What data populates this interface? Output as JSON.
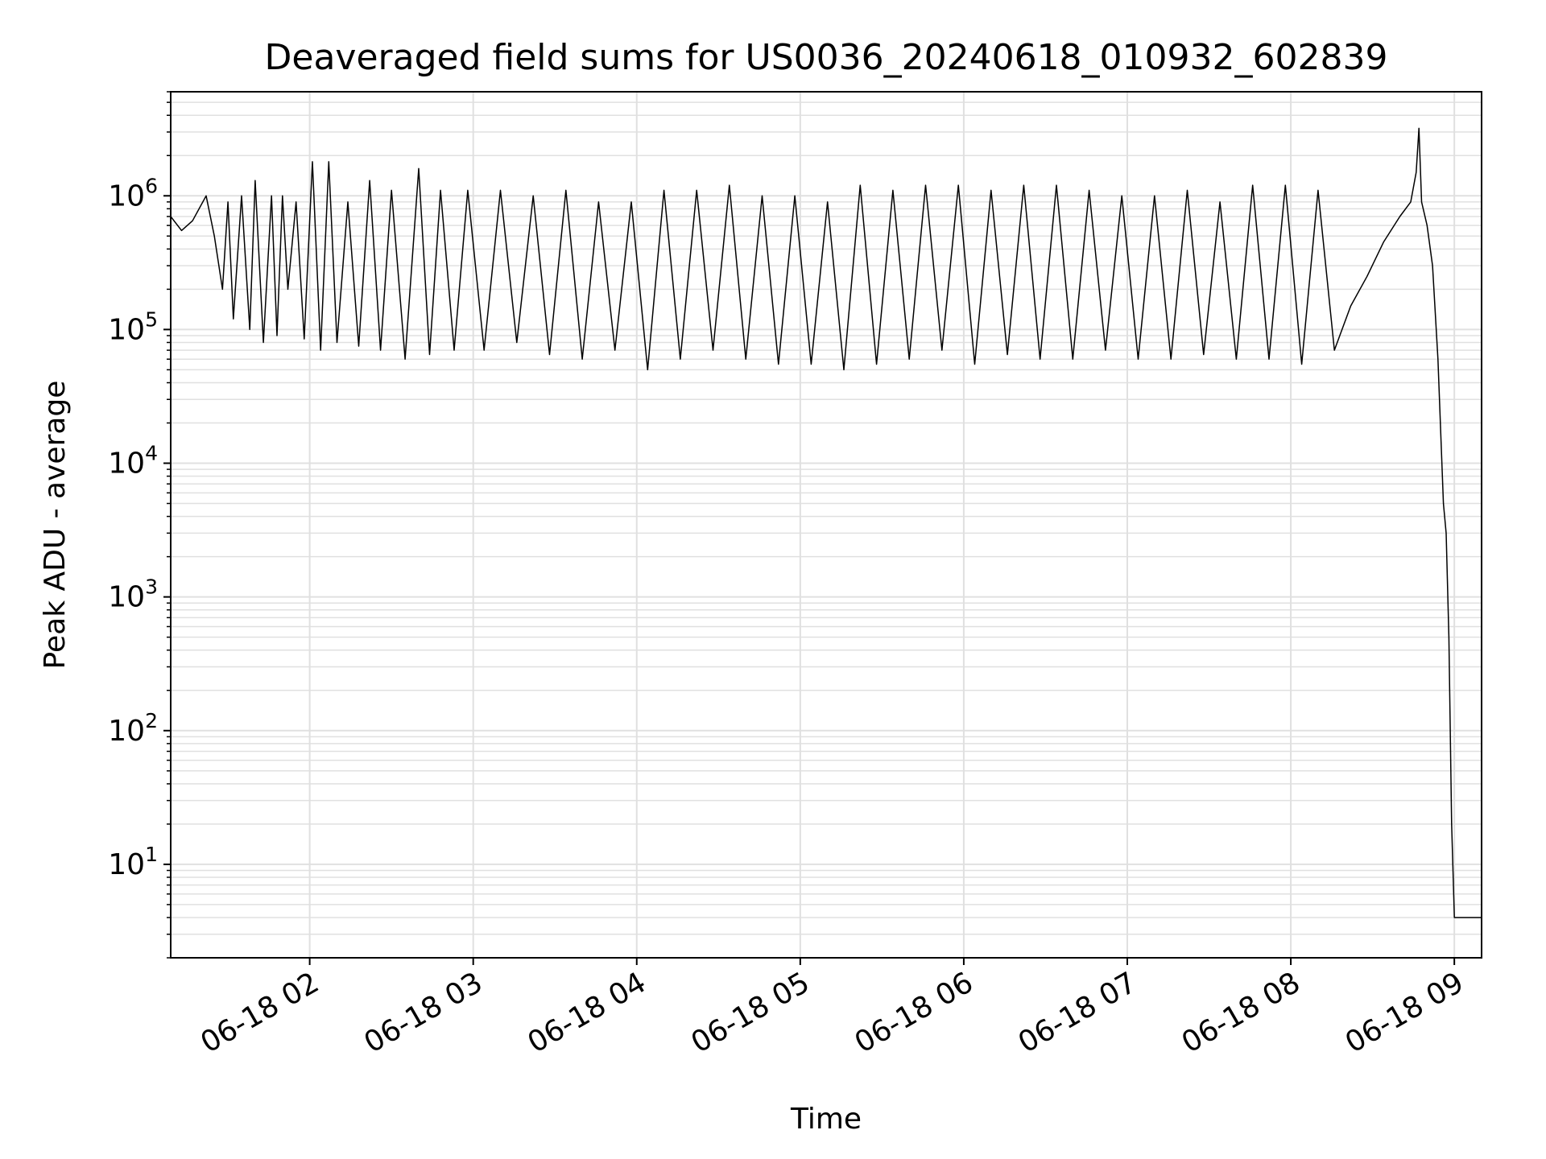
{
  "chart_data": {
    "type": "line",
    "title": "Deaveraged field sums for US0036_20240618_010932_602839",
    "xlabel": "Time",
    "ylabel": "Peak ADU - average",
    "y_scale": "log",
    "ylim": [
      2,
      6000000
    ],
    "xlim": [
      "06-18 01:09",
      "06-18 09:10"
    ],
    "grid": true,
    "x_ticks": [
      "06-18 02",
      "06-18 03",
      "06-18 04",
      "06-18 05",
      "06-18 06",
      "06-18 07",
      "06-18 08",
      "06-18 09"
    ],
    "y_ticks": [
      {
        "base": "10",
        "exp": "1"
      },
      {
        "base": "10",
        "exp": "2"
      },
      {
        "base": "10",
        "exp": "3"
      },
      {
        "base": "10",
        "exp": "4"
      },
      {
        "base": "10",
        "exp": "5"
      },
      {
        "base": "10",
        "exp": "6"
      }
    ],
    "line_color": "#000000",
    "grid_color": "#e0e0e0",
    "series": [
      {
        "x": [
          "06-18 01:09",
          "06-18 01:13",
          "06-18 01:17",
          "06-18 01:22",
          "06-18 01:25",
          "06-18 01:28",
          "06-18 01:30",
          "06-18 01:32",
          "06-18 01:35",
          "06-18 01:38",
          "06-18 01:40",
          "06-18 01:43",
          "06-18 01:46",
          "06-18 01:48",
          "06-18 01:50",
          "06-18 01:52",
          "06-18 01:55",
          "06-18 01:58",
          "06-18 02:01",
          "06-18 02:04",
          "06-18 02:07",
          "06-18 02:10",
          "06-18 02:14",
          "06-18 02:18",
          "06-18 02:22",
          "06-18 02:26",
          "06-18 02:30",
          "06-18 02:35",
          "06-18 02:40",
          "06-18 02:44",
          "06-18 02:48",
          "06-18 02:53",
          "06-18 02:58",
          "06-18 03:04",
          "06-18 03:10",
          "06-18 03:16",
          "06-18 03:22",
          "06-18 03:28",
          "06-18 03:34",
          "06-18 03:40",
          "06-18 03:46",
          "06-18 03:52",
          "06-18 03:58",
          "06-18 04:04",
          "06-18 04:10",
          "06-18 04:16",
          "06-18 04:22",
          "06-18 04:28",
          "06-18 04:34",
          "06-18 04:40",
          "06-18 04:46",
          "06-18 04:52",
          "06-18 04:58",
          "06-18 05:04",
          "06-18 05:10",
          "06-18 05:16",
          "06-18 05:22",
          "06-18 05:28",
          "06-18 05:34",
          "06-18 05:40",
          "06-18 05:46",
          "06-18 05:52",
          "06-18 05:58",
          "06-18 06:04",
          "06-18 06:10",
          "06-18 06:16",
          "06-18 06:22",
          "06-18 06:28",
          "06-18 06:34",
          "06-18 06:40",
          "06-18 06:46",
          "06-18 06:52",
          "06-18 06:58",
          "06-18 07:04",
          "06-18 07:10",
          "06-18 07:16",
          "06-18 07:22",
          "06-18 07:28",
          "06-18 07:34",
          "06-18 07:40",
          "06-18 07:46",
          "06-18 07:52",
          "06-18 07:58",
          "06-18 08:04",
          "06-18 08:10",
          "06-18 08:16",
          "06-18 08:22",
          "06-18 08:28",
          "06-18 08:34",
          "06-18 08:40",
          "06-18 08:44",
          "06-18 08:46",
          "06-18 08:47",
          "06-18 08:48",
          "06-18 08:50",
          "06-18 08:52",
          "06-18 08:54",
          "06-18 08:56",
          "06-18 08:57",
          "06-18 08:58",
          "06-18 08:59",
          "06-18 09:00",
          "06-18 09:00",
          "06-18 09:10"
        ],
        "y": [
          700000,
          550000,
          650000,
          1000000,
          500000,
          200000,
          900000,
          120000,
          1000000,
          100000,
          1300000,
          80000,
          1000000,
          90000,
          1000000,
          200000,
          900000,
          85000,
          1800000,
          70000,
          1800000,
          80000,
          900000,
          75000,
          1300000,
          70000,
          1100000,
          60000,
          1600000,
          65000,
          1100000,
          70000,
          1100000,
          70000,
          1100000,
          80000,
          1000000,
          65000,
          1100000,
          60000,
          900000,
          70000,
          900000,
          50000,
          1100000,
          60000,
          1100000,
          70000,
          1200000,
          60000,
          1000000,
          55000,
          1000000,
          55000,
          900000,
          50000,
          1200000,
          55000,
          1100000,
          60000,
          1200000,
          70000,
          1200000,
          55000,
          1100000,
          65000,
          1200000,
          60000,
          1200000,
          60000,
          1100000,
          70000,
          1000000,
          60000,
          1000000,
          60000,
          1100000,
          65000,
          900000,
          60000,
          1200000,
          60000,
          1200000,
          55000,
          1100000,
          70000,
          150000,
          250000,
          450000,
          700000,
          900000,
          1500000,
          3200000,
          900000,
          600000,
          300000,
          60000,
          5000,
          3000,
          500,
          20,
          4,
          4,
          4
        ]
      }
    ]
  }
}
